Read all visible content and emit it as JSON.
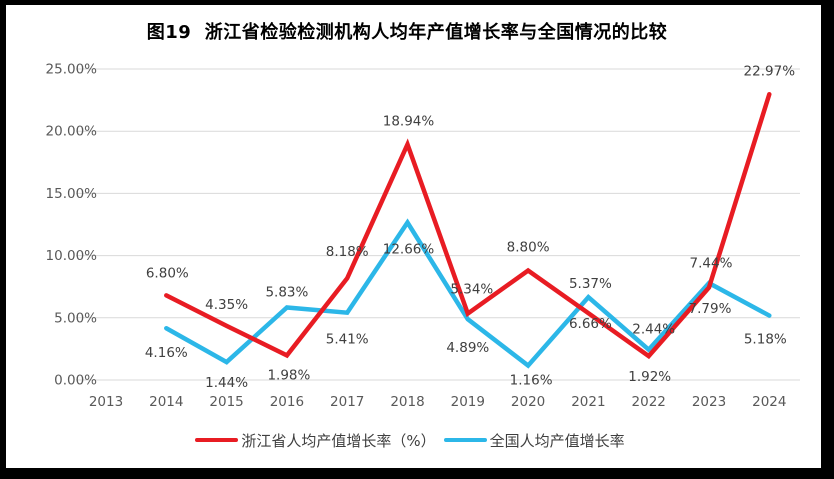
{
  "title": "图19  浙江省检验检测机构人均年产值增长率与全国情况的比较",
  "chart_data": {
    "type": "line",
    "title": "图19  浙江省检验检测机构人均年产值增长率与全国情况的比较",
    "categories": [
      "2013",
      "2014",
      "2015",
      "2016",
      "2017",
      "2018",
      "2019",
      "2020",
      "2021",
      "2022",
      "2023",
      "2024"
    ],
    "series": [
      {
        "name": "浙江省人均产值增长率（%）",
        "color": "#e81c23",
        "values": [
          null,
          6.8,
          4.35,
          1.98,
          8.18,
          18.94,
          5.34,
          8.8,
          5.37,
          1.92,
          7.44,
          22.97
        ],
        "labels": [
          null,
          "6.80%",
          "4.35%",
          "1.98%",
          "8.18%",
          "18.94%",
          "5.34%",
          "8.80%",
          "5.37%",
          "1.92%",
          "7.44%",
          "22.97%"
        ]
      },
      {
        "name": "全国人均产值增长率",
        "color": "#2cb7e8",
        "values": [
          null,
          4.16,
          1.44,
          5.83,
          5.41,
          12.66,
          4.89,
          1.16,
          6.66,
          2.44,
          7.79,
          5.18
        ],
        "labels": [
          null,
          "4.16%",
          "1.44%",
          "5.83%",
          "5.41%",
          "12.66%",
          "4.89%",
          "1.16%",
          "6.66%",
          "2.44%",
          "7.79%",
          "5.18%"
        ]
      }
    ],
    "y_ticks": [
      "0.00%",
      "5.00%",
      "10.00%",
      "15.00%",
      "20.00%",
      "25.00%"
    ],
    "y_tick_step": 5,
    "ylim": [
      0,
      25
    ],
    "xlabel": "",
    "ylabel": "",
    "grid": true,
    "legend_position": "bottom",
    "colors": {
      "grid": "#d9d9d9",
      "axis_text": "#595959",
      "label_text": "#404040",
      "legend_text": "#3f3f3f",
      "frame_border": "#000000",
      "background": "#ffffff"
    }
  }
}
